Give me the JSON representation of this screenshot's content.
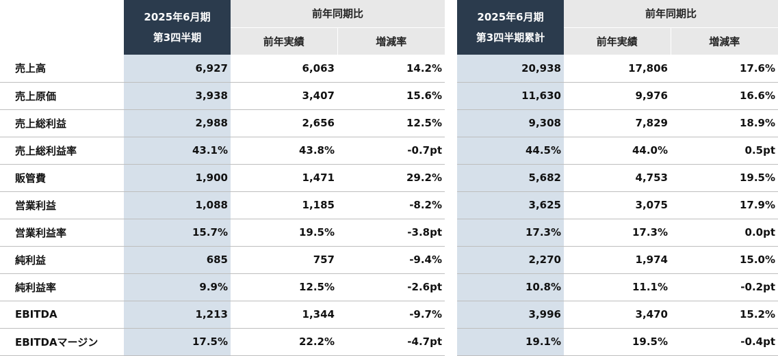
{
  "left": {
    "header_current_line1": "2025年6月期",
    "header_current_line2": "第3四半期",
    "header_yoy": "前年同期比",
    "header_prev": "前年実績",
    "header_rate": "増減率"
  },
  "right": {
    "header_current_line1": "2025年6月期",
    "header_current_line2": "第3四半期累計",
    "header_yoy": "前年同期比",
    "header_prev": "前年実績",
    "header_rate": "増減率"
  },
  "rows": [
    {
      "label": "売上高",
      "q_cur": "6,927",
      "q_prev": "6,063",
      "q_rate": "14.2%",
      "c_cur": "20,938",
      "c_prev": "17,806",
      "c_rate": "17.6%"
    },
    {
      "label": "売上原価",
      "q_cur": "3,938",
      "q_prev": "3,407",
      "q_rate": "15.6%",
      "c_cur": "11,630",
      "c_prev": "9,976",
      "c_rate": "16.6%"
    },
    {
      "label": "売上総利益",
      "q_cur": "2,988",
      "q_prev": "2,656",
      "q_rate": "12.5%",
      "c_cur": "9,308",
      "c_prev": "7,829",
      "c_rate": "18.9%"
    },
    {
      "label": "売上総利益率",
      "q_cur": "43.1%",
      "q_prev": "43.8%",
      "q_rate": "-0.7pt",
      "c_cur": "44.5%",
      "c_prev": "44.0%",
      "c_rate": "0.5pt"
    },
    {
      "label": "販管費",
      "q_cur": "1,900",
      "q_prev": "1,471",
      "q_rate": "29.2%",
      "c_cur": "5,682",
      "c_prev": "4,753",
      "c_rate": "19.5%"
    },
    {
      "label": "営業利益",
      "q_cur": "1,088",
      "q_prev": "1,185",
      "q_rate": "-8.2%",
      "c_cur": "3,625",
      "c_prev": "3,075",
      "c_rate": "17.9%"
    },
    {
      "label": "営業利益率",
      "q_cur": "15.7%",
      "q_prev": "19.5%",
      "q_rate": "-3.8pt",
      "c_cur": "17.3%",
      "c_prev": "17.3%",
      "c_rate": "0.0pt"
    },
    {
      "label": "純利益",
      "q_cur": "685",
      "q_prev": "757",
      "q_rate": "-9.4%",
      "c_cur": "2,270",
      "c_prev": "1,974",
      "c_rate": "15.0%"
    },
    {
      "label": "純利益率",
      "q_cur": "9.9%",
      "q_prev": "12.5%",
      "q_rate": "-2.6pt",
      "c_cur": "10.8%",
      "c_prev": "11.1%",
      "c_rate": "-0.2pt"
    },
    {
      "label": "EBITDA",
      "q_cur": "1,213",
      "q_prev": "1,344",
      "q_rate": "-9.7%",
      "c_cur": "3,996",
      "c_prev": "3,470",
      "c_rate": "15.2%"
    },
    {
      "label": "EBITDAマージン",
      "q_cur": "17.5%",
      "q_prev": "22.2%",
      "q_rate": "-4.7pt",
      "c_cur": "19.1%",
      "c_prev": "19.5%",
      "c_rate": "-0.4pt"
    }
  ]
}
